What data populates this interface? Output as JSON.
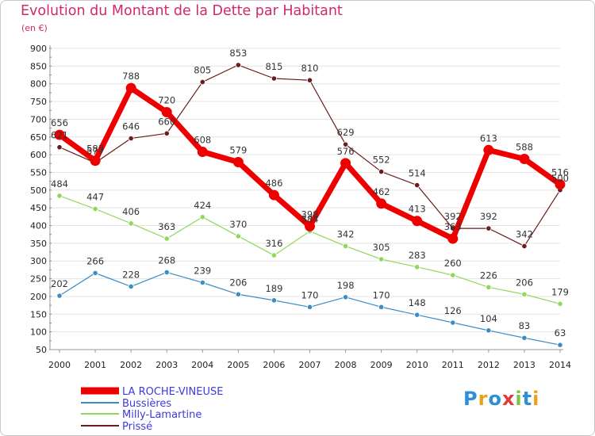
{
  "header": {
    "title": "Evolution du Montant de la Dette par Habitant",
    "subtitle": "(en €)"
  },
  "logo": {
    "letters": [
      "P",
      "r",
      "o",
      "x",
      "i",
      "t",
      "i"
    ],
    "colors": [
      "#2f8fd6",
      "#e8a21c",
      "#2f8fd6",
      "#e23a3a",
      "#7cc242",
      "#2f8fd6",
      "#e8a21c"
    ]
  },
  "chart_data": {
    "type": "line",
    "title": "Evolution du Montant de la Dette par Habitant",
    "ylabel": "(en €)",
    "xlabel": "",
    "ylim": [
      50,
      900
    ],
    "yticks": [
      50,
      100,
      150,
      200,
      250,
      300,
      350,
      400,
      450,
      500,
      550,
      600,
      650,
      700,
      750,
      800,
      850,
      900
    ],
    "categories": [
      "2000",
      "2001",
      "2002",
      "2003",
      "2004",
      "2005",
      "2006",
      "2007",
      "2008",
      "2009",
      "2010",
      "2011",
      "2012",
      "2013",
      "2014"
    ],
    "grid": "horizontal",
    "legend_position": "bottom-left",
    "series": [
      {
        "name": "LA ROCHE-VINEUSE",
        "color": "#ee0000",
        "values": [
          656,
          583,
          788,
          720,
          608,
          579,
          486,
          398,
          576,
          462,
          413,
          363,
          613,
          588,
          516
        ]
      },
      {
        "name": "Bussières",
        "color": "#3d8cc4",
        "values": [
          202,
          266,
          228,
          268,
          239,
          206,
          189,
          170,
          198,
          170,
          148,
          126,
          104,
          83,
          63
        ]
      },
      {
        "name": "Milly-Lamartine",
        "color": "#8fd85a",
        "values": [
          484,
          447,
          406,
          363,
          424,
          370,
          316,
          384,
          342,
          305,
          283,
          260,
          226,
          206,
          179
        ]
      },
      {
        "name": "Prissé",
        "color": "#6b1c1c",
        "values": [
          621,
          577,
          646,
          660,
          805,
          853,
          815,
          810,
          629,
          552,
          514,
          392,
          392,
          342,
          500
        ]
      }
    ]
  }
}
